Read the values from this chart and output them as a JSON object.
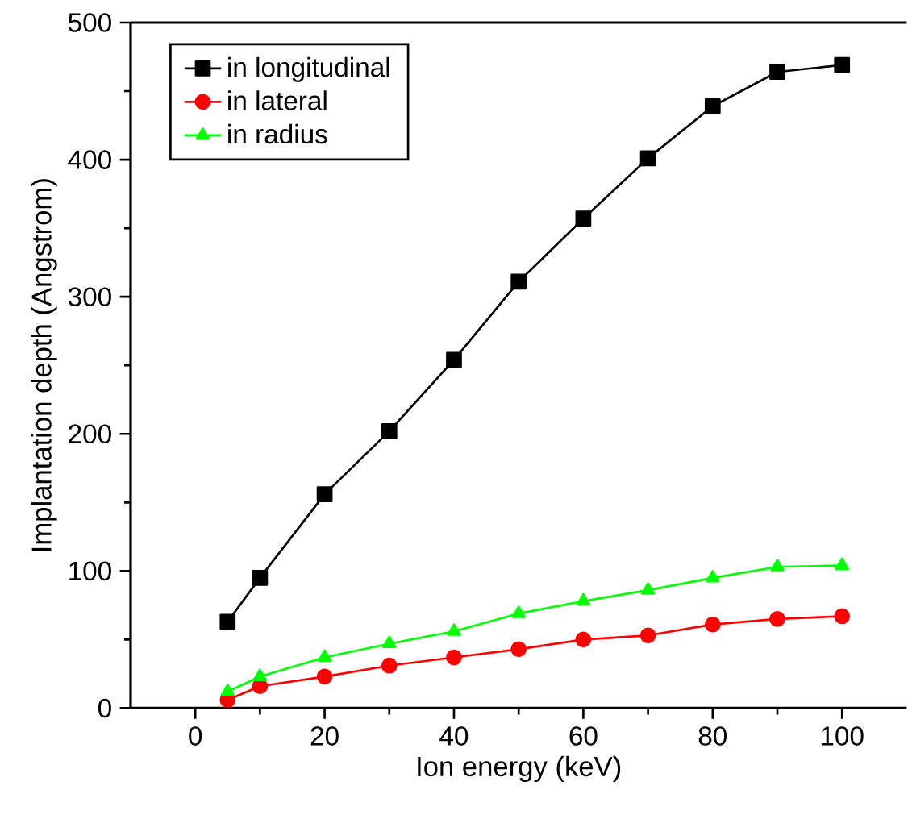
{
  "chart_data": {
    "type": "line",
    "xlabel": "Ion energy (keV)",
    "ylabel": "Implantation depth (Angstrom)",
    "x": [
      5,
      10,
      20,
      30,
      40,
      50,
      60,
      70,
      80,
      90,
      100
    ],
    "series": [
      {
        "name": "in longitudinal",
        "color": "#000000",
        "marker": "square",
        "values": [
          63,
          95,
          156,
          202,
          254,
          311,
          357,
          401,
          439,
          464,
          469
        ]
      },
      {
        "name": "in lateral",
        "color": "#ff0000",
        "marker": "circle",
        "values": [
          6,
          16,
          23,
          31,
          37,
          43,
          50,
          53,
          61,
          65,
          67
        ]
      },
      {
        "name": "in radius",
        "color": "#00ff00",
        "marker": "triangle",
        "values": [
          12,
          23,
          37,
          47,
          56,
          69,
          78,
          86,
          95,
          103,
          104
        ]
      }
    ],
    "xlim": [
      -10,
      110
    ],
    "ylim": [
      0,
      500
    ],
    "xticks": [
      0,
      20,
      40,
      60,
      80,
      100
    ],
    "yticks": [
      0,
      100,
      200,
      300,
      400,
      500
    ],
    "legend": "top left",
    "grid": false,
    "line_style": "solid"
  }
}
